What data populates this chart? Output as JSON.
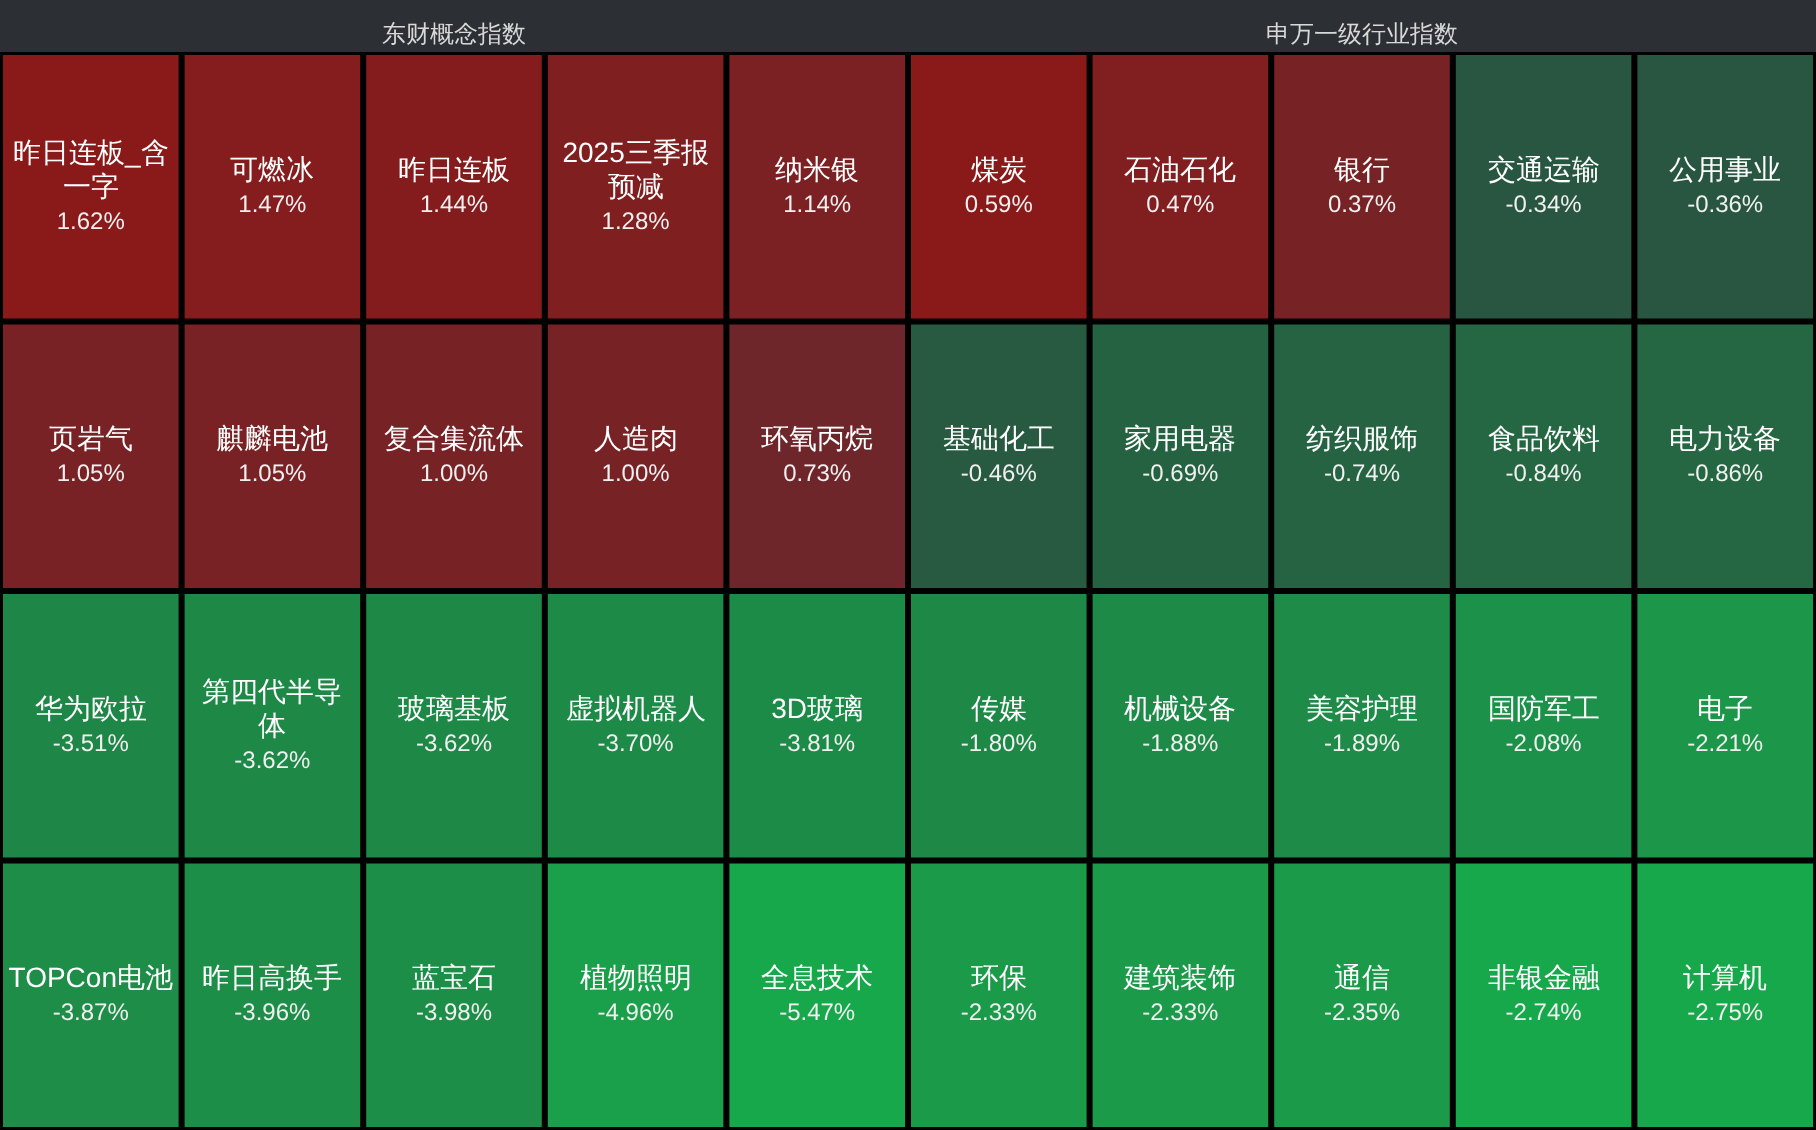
{
  "chart_data": [
    {
      "type": "other",
      "title": "东财概念指数",
      "categories": [
        "昨日连板_含一字",
        "可燃冰",
        "昨日连板",
        "2025三季报预减",
        "纳米银",
        "页岩气",
        "麒麟电池",
        "复合集流体",
        "人造肉",
        "环氧丙烷",
        "华为欧拉",
        "第四代半导体",
        "玻璃基板",
        "虚拟机器人",
        "3D玻璃",
        "TOPCon电池",
        "昨日高换手",
        "蓝宝石",
        "植物照明",
        "全息技术"
      ],
      "values": [
        1.62,
        1.47,
        1.44,
        1.28,
        1.14,
        1.05,
        1.05,
        1.0,
        1.0,
        0.73,
        -3.51,
        -3.62,
        -3.62,
        -3.7,
        -3.81,
        -3.87,
        -3.96,
        -3.98,
        -4.96,
        -5.47
      ],
      "value_labels": [
        "1.62%",
        "1.47%",
        "1.44%",
        "1.28%",
        "1.14%",
        "1.05%",
        "1.05%",
        "1.00%",
        "1.00%",
        "0.73%",
        "-3.51%",
        "-3.62%",
        "-3.62%",
        "-3.70%",
        "-3.81%",
        "-3.87%",
        "-3.96%",
        "-3.98%",
        "-4.96%",
        "-5.47%"
      ]
    },
    {
      "type": "other",
      "title": "申万一级行业指数",
      "categories": [
        "煤炭",
        "石油石化",
        "银行",
        "交通运输",
        "公用事业",
        "基础化工",
        "家用电器",
        "纺织服饰",
        "食品饮料",
        "电力设备",
        "传媒",
        "机械设备",
        "美容护理",
        "国防军工",
        "电子",
        "环保",
        "建筑装饰",
        "通信",
        "非银金融",
        "计算机"
      ],
      "values": [
        0.59,
        0.47,
        0.37,
        -0.34,
        -0.36,
        -0.46,
        -0.69,
        -0.74,
        -0.84,
        -0.86,
        -1.8,
        -1.88,
        -1.89,
        -2.08,
        -2.21,
        -2.33,
        -2.33,
        -2.35,
        -2.74,
        -2.75
      ],
      "value_labels": [
        "0.59%",
        "0.47%",
        "0.37%",
        "-0.34%",
        "-0.36%",
        "-0.46%",
        "-0.69%",
        "-0.74%",
        "-0.84%",
        "-0.86%",
        "-1.80%",
        "-1.88%",
        "-1.89%",
        "-2.08%",
        "-2.21%",
        "-2.33%",
        "-2.33%",
        "-2.35%",
        "-2.74%",
        "-2.75%"
      ]
    }
  ]
}
